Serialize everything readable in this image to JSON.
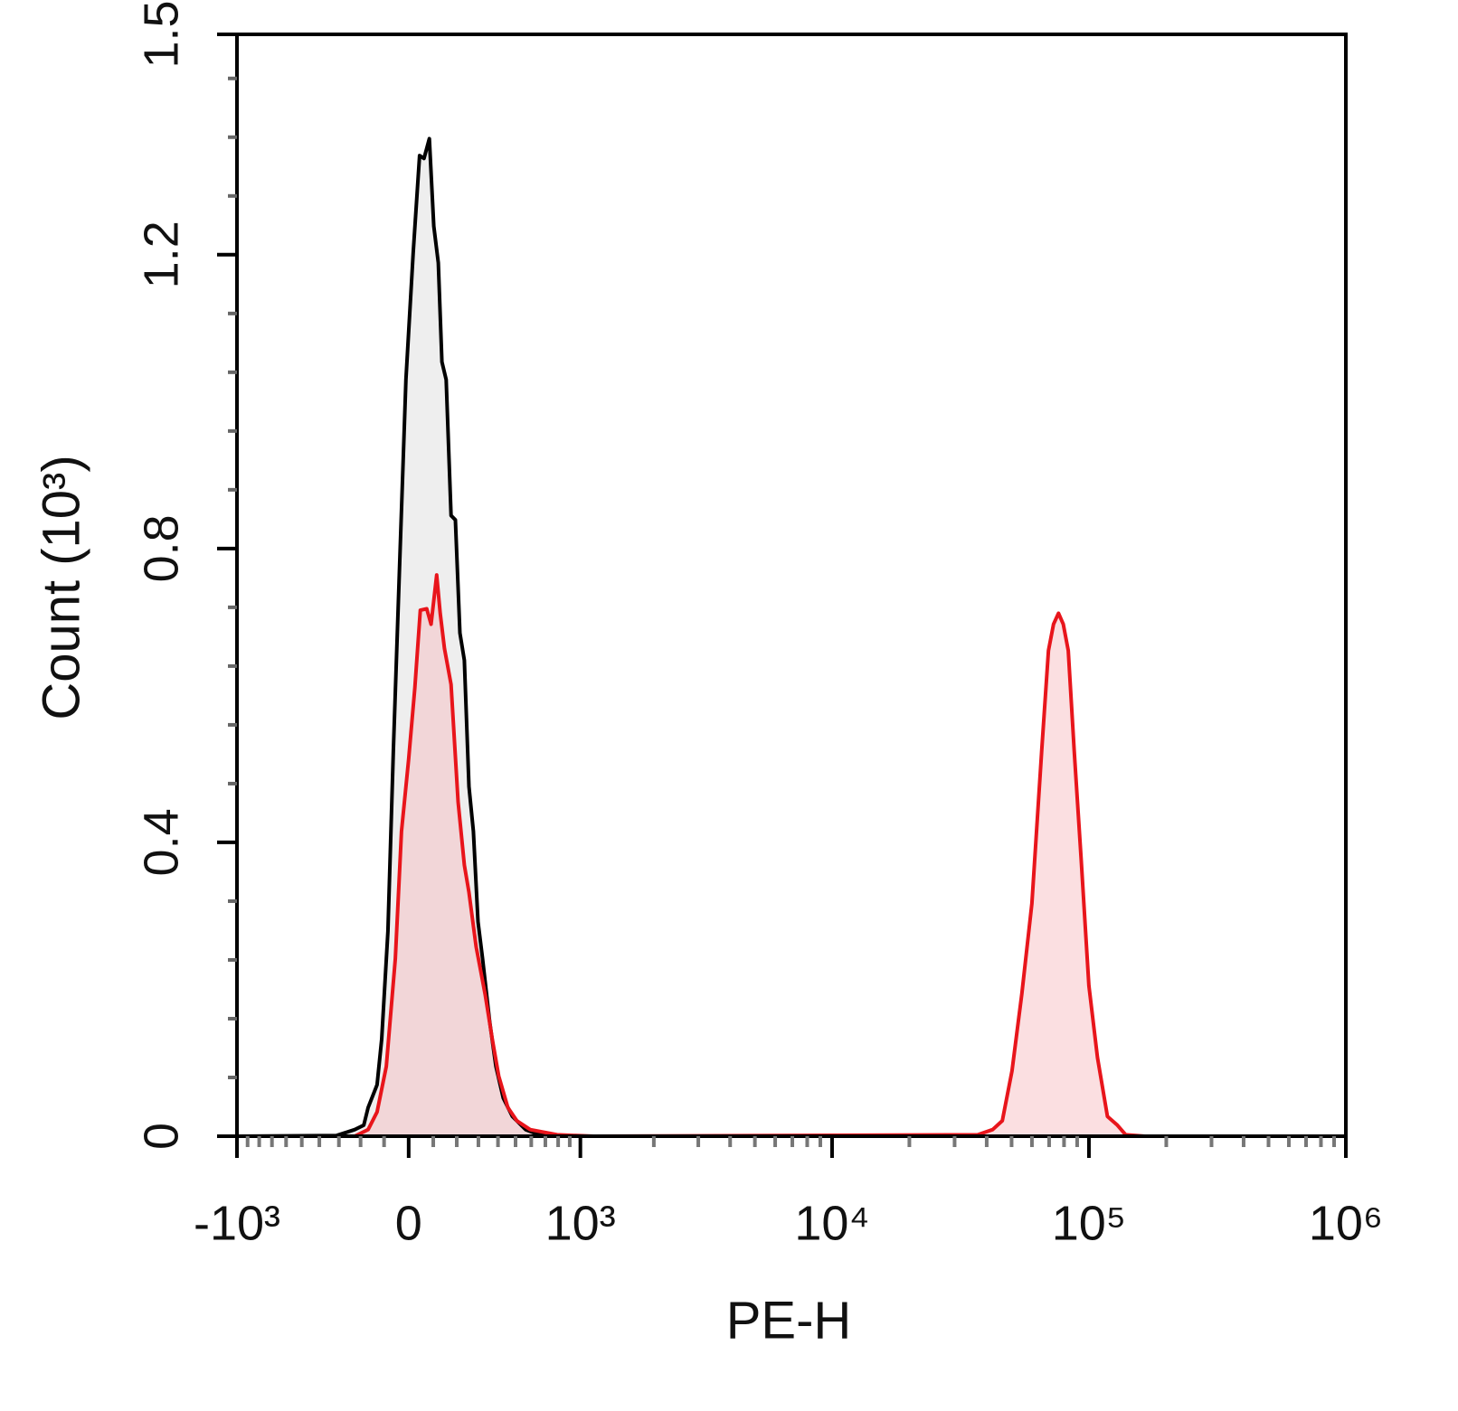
{
  "chart_data": {
    "type": "histogram-overlay",
    "xlabel": "PE-H",
    "ylabel": "Count (10³)",
    "xscale": "biexponential",
    "xlim": [
      -1000,
      1000000
    ],
    "ylim": [
      0,
      1.5
    ],
    "xticks": [
      {
        "value": -1000,
        "label": "-10³"
      },
      0,
      {
        "value": 1000,
        "label": "10³"
      },
      {
        "value": 10000,
        "label": "10⁴"
      },
      {
        "value": 100000,
        "label": "10⁵"
      },
      {
        "value": 1000000,
        "label": "10⁶"
      }
    ],
    "xminorticks": [
      -900,
      -800,
      -700,
      -600,
      -500,
      -400,
      -300,
      -200,
      -100,
      100,
      200,
      300,
      400,
      500,
      600,
      700,
      800,
      900,
      2000,
      3000,
      4000,
      5000,
      6000,
      7000,
      8000,
      9000,
      20000,
      30000,
      40000,
      50000,
      60000,
      70000,
      80000,
      90000,
      200000,
      300000,
      400000,
      500000,
      600000,
      700000,
      800000,
      900000
    ],
    "yticks": [
      0,
      0.4,
      0.8,
      1.2,
      1.5
    ],
    "yminorticks": [
      0.08,
      0.16,
      0.24,
      0.32,
      0.48,
      0.56,
      0.64,
      0.72,
      0.88,
      0.96,
      1.04,
      1.12,
      1.28,
      1.36,
      1.44
    ],
    "series": [
      {
        "color": "#000000",
        "fill": "#d9d9d9",
        "x": [
          -1000,
          -311,
          -226,
          -186,
          -167,
          -129,
          -110,
          -84,
          -62,
          -36,
          -11,
          18,
          44,
          62,
          84,
          102,
          121,
          136,
          154,
          175,
          194,
          214,
          234,
          255,
          276,
          298,
          320,
          356,
          389,
          429,
          481,
          563,
          654,
          950,
          1000000
        ],
        "values": [
          0,
          0.001,
          0.009,
          0.015,
          0.039,
          0.07,
          0.132,
          0.279,
          0.525,
          0.784,
          1.03,
          1.202,
          1.335,
          1.331,
          1.358,
          1.239,
          1.189,
          1.054,
          1.03,
          0.845,
          0.839,
          0.685,
          0.648,
          0.476,
          0.415,
          0.292,
          0.242,
          0.156,
          0.095,
          0.052,
          0.027,
          0.009,
          0.002,
          0,
          0
        ]
      },
      {
        "color": "#e8151b",
        "fill": "#f7b9bc",
        "x": [
          -1000,
          -226,
          -167,
          -129,
          -91,
          -54,
          -29,
          0,
          25,
          47,
          73,
          91,
          114,
          129,
          147,
          175,
          206,
          234,
          255,
          289,
          333,
          370,
          404,
          455,
          508,
          593,
          792,
          1134,
          36900,
          42200,
          46000,
          50200,
          54800,
          60000,
          65500,
          69600,
          72800,
          76100,
          79500,
          83100,
          87600,
          93200,
          100000,
          108000,
          118000,
          129000,
          139000,
          165000,
          1000000
        ],
        "values": [
          0,
          0,
          0.009,
          0.033,
          0.095,
          0.242,
          0.415,
          0.513,
          0.611,
          0.716,
          0.718,
          0.697,
          0.764,
          0.712,
          0.664,
          0.615,
          0.455,
          0.369,
          0.332,
          0.258,
          0.193,
          0.132,
          0.082,
          0.039,
          0.021,
          0.009,
          0.002,
          0,
          0.002,
          0.009,
          0.021,
          0.089,
          0.194,
          0.317,
          0.526,
          0.661,
          0.697,
          0.712,
          0.697,
          0.661,
          0.526,
          0.378,
          0.205,
          0.107,
          0.027,
          0.015,
          0.002,
          0,
          0
        ]
      }
    ]
  }
}
